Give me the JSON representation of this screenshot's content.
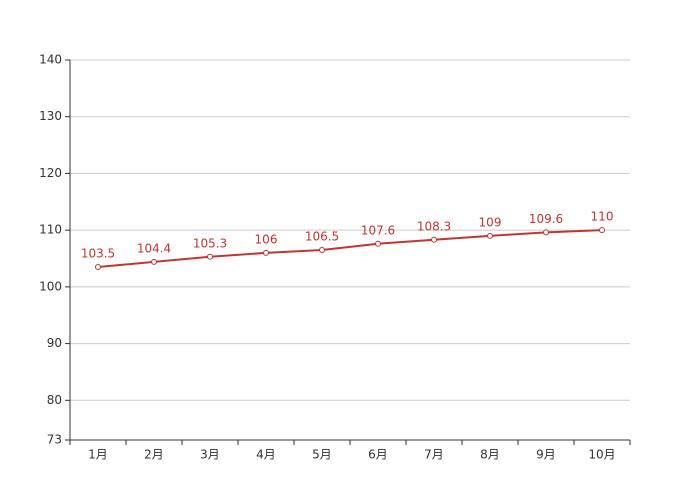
{
  "chart_data": {
    "type": "line",
    "categories": [
      "1月",
      "2月",
      "3月",
      "4月",
      "5月",
      "6月",
      "7月",
      "8月",
      "9月",
      "10月"
    ],
    "series": [
      {
        "color": "#c23531",
        "values": [
          103.5,
          104.4,
          105.3,
          106,
          106.5,
          107.6,
          108.3,
          109,
          109.6,
          110
        ]
      }
    ],
    "ylim": [
      73,
      140
    ],
    "yticks": [
      73,
      80,
      90,
      100,
      110,
      120,
      130,
      140
    ],
    "grid": true
  }
}
